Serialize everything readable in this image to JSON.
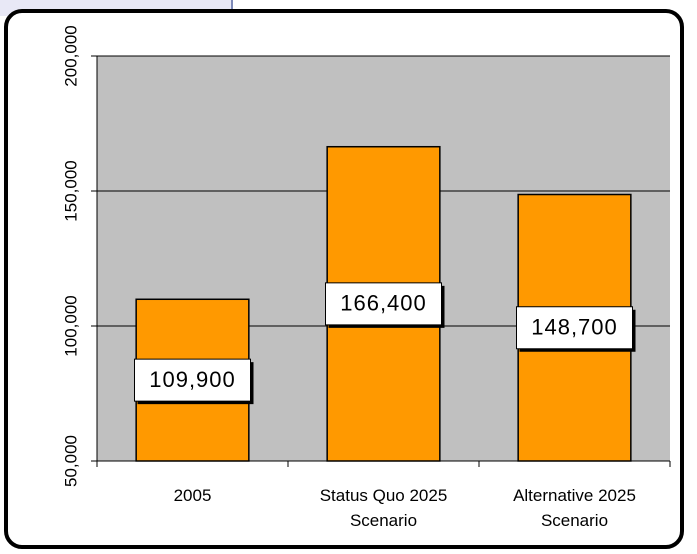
{
  "chart_data": {
    "type": "bar",
    "categories": [
      "2005",
      [
        "Status Quo 2025",
        "Scenario"
      ],
      [
        "Alternative 2025",
        "Scenario"
      ]
    ],
    "values": [
      109900,
      166400,
      148700
    ],
    "data_labels": [
      "109,900",
      "166,400",
      "148,700"
    ],
    "ylim": [
      50000,
      200000
    ],
    "yticks": [
      50000,
      100000,
      150000,
      200000
    ],
    "ytick_labels": [
      "50,000",
      "100,000",
      "150,000",
      "200,000"
    ],
    "ylabel": "",
    "xlabel": "",
    "grid": true,
    "plot_background": "#c0c0c0",
    "bar_color": "#ff9900",
    "bar_edge_color": "#000000"
  }
}
